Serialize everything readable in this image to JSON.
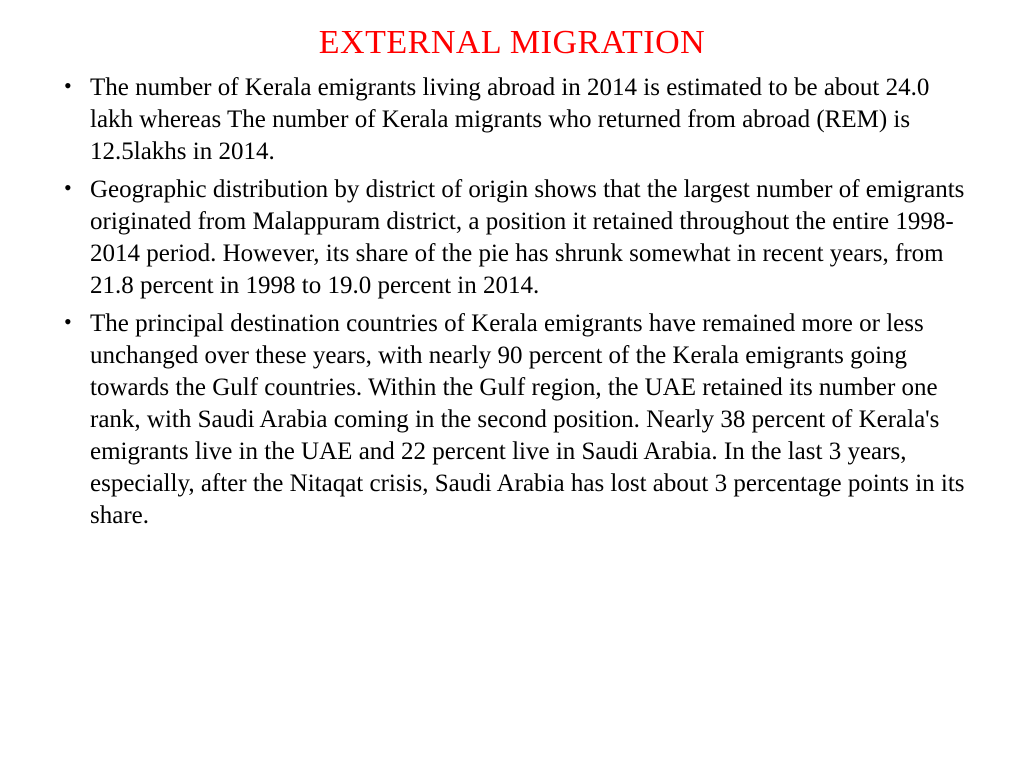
{
  "title": {
    "text": "EXTERNAL MIGRATION",
    "color": "#ff0000",
    "fontsize": 34
  },
  "body": {
    "color": "#000000",
    "fontsize": 25,
    "bullets": [
      "The number of Kerala emigrants living abroad in 2014 is estimated to be about 24.0 lakh whereas The number of Kerala migrants who returned from abroad (REM) is 12.5lakhs in 2014.",
      "Geographic distribution by district of origin shows that the largest number of emigrants originated from Malappuram district, a position it retained throughout the entire 1998-2014 period. However, its share of the pie has shrunk somewhat in recent years, from 21.8 percent in 1998 to 19.0 percent in 2014.",
      "The principal destination countries of Kerala emigrants have remained more or less unchanged over these years, with nearly 90 percent of the Kerala emigrants going towards the Gulf countries. Within the Gulf region, the UAE retained its number one rank, with Saudi Arabia coming in the second position. Nearly 38 percent of Kerala's emigrants live in the UAE and 22 percent live in Saudi Arabia. In the last 3 years, especially, after the Nitaqat crisis, Saudi Arabia has lost about 3 percentage points in its share."
    ]
  },
  "background_color": "#ffffff"
}
